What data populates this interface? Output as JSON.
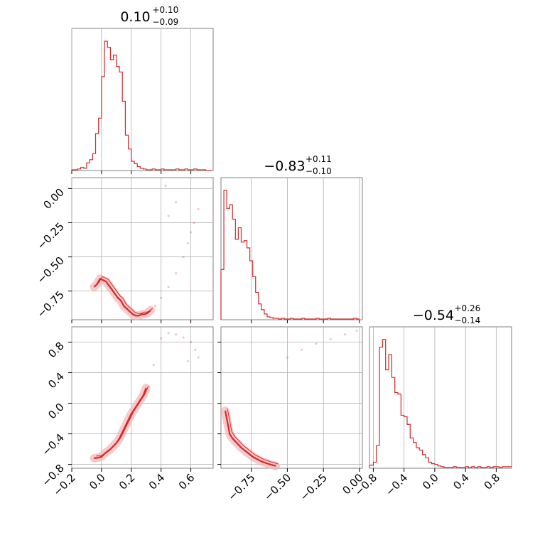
{
  "chart_data": [
    {
      "type": "histogram",
      "panel": "diag-0",
      "title": {
        "median": "0.10",
        "plus": "+0.10",
        "minus": "−0.09"
      },
      "xlim": [
        -0.2,
        0.75
      ],
      "x_ticks": [
        "−0.2",
        "0.0",
        "0.2",
        "0.4",
        "0.6"
      ],
      "x_tick_values": [
        -0.2,
        0.0,
        0.2,
        0.4,
        0.6
      ],
      "bin_edges": [
        -0.2,
        -0.18,
        -0.16,
        -0.14,
        -0.12,
        -0.1,
        -0.08,
        -0.06,
        -0.04,
        -0.02,
        0.0,
        0.02,
        0.04,
        0.06,
        0.08,
        0.1,
        0.12,
        0.14,
        0.16,
        0.18,
        0.2,
        0.22,
        0.24,
        0.26,
        0.28,
        0.3,
        0.32,
        0.34,
        0.36,
        0.38,
        0.4,
        0.42,
        0.44,
        0.46,
        0.48,
        0.5,
        0.52,
        0.54,
        0.56,
        0.58,
        0.6,
        0.62,
        0.64,
        0.66,
        0.68,
        0.7,
        0.72,
        0.74
      ],
      "counts": [
        1,
        1,
        2,
        4,
        3,
        10,
        14,
        22,
        48,
        68,
        122,
        168,
        160,
        144,
        150,
        135,
        128,
        90,
        46,
        28,
        12,
        9,
        5,
        3,
        2,
        1,
        1,
        2,
        1,
        1,
        2,
        1,
        1,
        1,
        1,
        2,
        1,
        1,
        2,
        1,
        1,
        2,
        1,
        1,
        1,
        0,
        0
      ]
    },
    {
      "type": "histogram",
      "panel": "diag-1",
      "title": {
        "median": "−0.83",
        "plus": "+0.11",
        "minus": "−0.10"
      },
      "xlim": [
        -0.96,
        0.02
      ],
      "x_ticks": [
        "−0.75",
        "−0.50",
        "−0.25",
        "0.00"
      ],
      "x_tick_values": [
        -0.75,
        -0.5,
        -0.25,
        0.0
      ],
      "bin_edges": [
        -0.96,
        -0.94,
        -0.92,
        -0.9,
        -0.88,
        -0.86,
        -0.84,
        -0.82,
        -0.8,
        -0.78,
        -0.76,
        -0.74,
        -0.72,
        -0.7,
        -0.68,
        -0.66,
        -0.64,
        -0.62,
        -0.6,
        -0.58,
        -0.56,
        -0.54,
        -0.52,
        -0.5,
        -0.48,
        -0.46,
        -0.44,
        -0.42,
        -0.4,
        -0.38,
        -0.36,
        -0.34,
        -0.32,
        -0.3,
        -0.28,
        -0.26,
        -0.24,
        -0.22,
        -0.2,
        -0.18,
        -0.16,
        -0.14,
        -0.12,
        -0.1,
        -0.08,
        -0.06,
        -0.04,
        -0.02,
        0.0
      ],
      "counts": [
        70,
        180,
        155,
        160,
        140,
        112,
        128,
        108,
        110,
        100,
        82,
        60,
        38,
        22,
        14,
        8,
        4,
        3,
        2,
        2,
        1,
        2,
        1,
        1,
        2,
        1,
        1,
        1,
        2,
        1,
        1,
        1,
        1,
        2,
        1,
        1,
        1,
        2,
        1,
        1,
        1,
        1,
        1,
        1,
        1,
        1,
        2,
        1
      ]
    },
    {
      "type": "histogram",
      "panel": "diag-2",
      "title": {
        "median": "−0.54",
        "plus": "+0.26",
        "minus": "−0.14"
      },
      "xlim": [
        -0.85,
        1.0
      ],
      "x_ticks": [
        "−0.8",
        "−0.4",
        "0.0",
        "0.4",
        "0.8"
      ],
      "x_tick_values": [
        -0.8,
        -0.4,
        0.0,
        0.4,
        0.8
      ],
      "bin_edges": [
        -0.85,
        -0.8,
        -0.76,
        -0.72,
        -0.68,
        -0.64,
        -0.6,
        -0.56,
        -0.52,
        -0.48,
        -0.44,
        -0.4,
        -0.36,
        -0.32,
        -0.28,
        -0.24,
        -0.2,
        -0.16,
        -0.12,
        -0.08,
        -0.04,
        0.0,
        0.04,
        0.08,
        0.12,
        0.16,
        0.2,
        0.24,
        0.28,
        0.32,
        0.36,
        0.4,
        0.44,
        0.48,
        0.52,
        0.56,
        0.6,
        0.64,
        0.68,
        0.72,
        0.76,
        0.8,
        0.84,
        0.88,
        0.92,
        0.96,
        1.0
      ],
      "counts": [
        4,
        8,
        30,
        160,
        170,
        130,
        150,
        120,
        100,
        98,
        70,
        68,
        58,
        40,
        34,
        27,
        24,
        18,
        14,
        8,
        6,
        5,
        3,
        2,
        1,
        1,
        1,
        2,
        1,
        1,
        1,
        2,
        1,
        2,
        1,
        2,
        1,
        1,
        2,
        1,
        2,
        2,
        1,
        2,
        2,
        2
      ]
    },
    {
      "type": "scatter",
      "panel": "2d-1-0",
      "xlim": [
        -0.2,
        0.75
      ],
      "ylim": [
        -0.96,
        0.08
      ],
      "y_ticks": [
        "0.00",
        "−0.25",
        "−0.50",
        "−0.75"
      ],
      "y_tick_values": [
        0.0,
        -0.25,
        -0.5,
        -0.75
      ],
      "x": [
        -0.05,
        -0.03,
        -0.01,
        0.01,
        0.03,
        0.05,
        0.07,
        0.09,
        0.11,
        0.13,
        0.15,
        0.17,
        0.19,
        0.21,
        0.23,
        0.25,
        0.27,
        0.29,
        0.31,
        0.33,
        0.36,
        0.4,
        0.45,
        0.5,
        0.55,
        0.58,
        0.6,
        0.62,
        0.65,
        0.5,
        0.45,
        0.43
      ],
      "y": [
        -0.72,
        -0.7,
        -0.66,
        -0.67,
        -0.68,
        -0.71,
        -0.74,
        -0.77,
        -0.8,
        -0.82,
        -0.86,
        -0.88,
        -0.9,
        -0.92,
        -0.93,
        -0.93,
        -0.92,
        -0.92,
        -0.91,
        -0.89,
        -0.86,
        -0.8,
        -0.72,
        -0.62,
        -0.5,
        -0.4,
        -0.32,
        -0.25,
        -0.15,
        -0.1,
        -0.2,
        0.02
      ]
    },
    {
      "type": "scatter",
      "panel": "2d-2-0",
      "xlim": [
        -0.2,
        0.75
      ],
      "ylim": [
        -0.85,
        1.0
      ],
      "y_ticks": [
        "0.8",
        "0.4",
        "0.0",
        "−0.4",
        "−0.8"
      ],
      "y_tick_values": [
        0.8,
        0.4,
        0.0,
        -0.4,
        -0.8
      ],
      "x": [
        -0.05,
        -0.02,
        0.0,
        0.02,
        0.04,
        0.06,
        0.08,
        0.1,
        0.12,
        0.14,
        0.16,
        0.18,
        0.2,
        0.22,
        0.24,
        0.26,
        0.28,
        0.3,
        0.35,
        0.4,
        0.45,
        0.5,
        0.55,
        0.6,
        0.63,
        0.65,
        0.58
      ],
      "y": [
        -0.72,
        -0.71,
        -0.7,
        -0.66,
        -0.63,
        -0.6,
        -0.56,
        -0.52,
        -0.46,
        -0.38,
        -0.3,
        -0.22,
        -0.14,
        -0.08,
        -0.02,
        0.04,
        0.1,
        0.2,
        0.5,
        0.85,
        0.92,
        0.9,
        0.86,
        0.8,
        0.7,
        0.6,
        0.55
      ]
    },
    {
      "type": "scatter",
      "panel": "2d-2-1",
      "xlim": [
        -0.96,
        0.02
      ],
      "ylim": [
        -0.85,
        1.0
      ],
      "x": [
        -0.93,
        -0.92,
        -0.91,
        -0.9,
        -0.88,
        -0.86,
        -0.84,
        -0.82,
        -0.8,
        -0.78,
        -0.76,
        -0.74,
        -0.72,
        -0.7,
        -0.68,
        -0.65,
        -0.62,
        -0.58,
        -0.5,
        -0.4,
        -0.3,
        -0.2,
        -0.1,
        -0.02
      ],
      "y": [
        -0.1,
        -0.2,
        -0.3,
        -0.4,
        -0.46,
        -0.5,
        -0.54,
        -0.58,
        -0.61,
        -0.64,
        -0.67,
        -0.7,
        -0.72,
        -0.74,
        -0.76,
        -0.78,
        -0.8,
        -0.82,
        0.6,
        0.7,
        0.78,
        0.84,
        0.9,
        0.95
      ]
    }
  ],
  "style": {
    "line_color": "#d62728",
    "fill_color": "#f4b5b5",
    "grid_color": "#b0b0b0",
    "frame_color": "#808080"
  }
}
